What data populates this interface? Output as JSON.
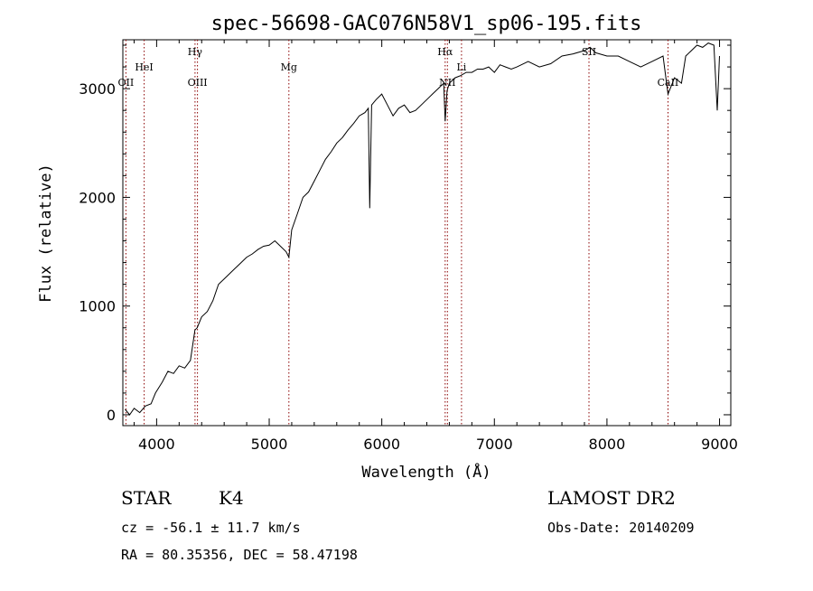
{
  "chart_data": {
    "type": "line",
    "title": "spec-56698-GAC076N58V1_sp06-195.fits",
    "xlabel": "Wavelength (Å)",
    "ylabel": "Flux (relative)",
    "xlim": [
      3700,
      9100
    ],
    "ylim": [
      -100,
      3450
    ],
    "x_ticks": [
      4000,
      5000,
      6000,
      7000,
      8000,
      9000
    ],
    "y_ticks": [
      0,
      1000,
      2000,
      3000
    ],
    "grid": false,
    "legend": "none",
    "series": [
      {
        "color": "#000000",
        "x": [
          3720,
          3760,
          3800,
          3850,
          3900,
          3950,
          3990,
          4050,
          4100,
          4150,
          4200,
          4250,
          4300,
          4340,
          4360,
          4400,
          4450,
          4500,
          4550,
          4600,
          4650,
          4700,
          4750,
          4800,
          4850,
          4900,
          4950,
          5000,
          5050,
          5100,
          5150,
          5175,
          5200,
          5250,
          5300,
          5350,
          5400,
          5450,
          5500,
          5550,
          5600,
          5650,
          5700,
          5750,
          5800,
          5850,
          5880,
          5893,
          5910,
          5950,
          6000,
          6050,
          6100,
          6150,
          6200,
          6250,
          6300,
          6350,
          6400,
          6450,
          6500,
          6550,
          6563,
          6580,
          6600,
          6650,
          6700,
          6750,
          6800,
          6850,
          6900,
          6950,
          7000,
          7050,
          7100,
          7150,
          7200,
          7300,
          7400,
          7500,
          7600,
          7700,
          7800,
          7850,
          7900,
          8000,
          8100,
          8200,
          8300,
          8400,
          8498,
          8542,
          8600,
          8662,
          8700,
          8750,
          8800,
          8850,
          8900,
          8950,
          8980,
          9000
        ],
        "values": [
          50,
          0,
          60,
          20,
          80,
          100,
          200,
          300,
          400,
          380,
          450,
          430,
          500,
          780,
          800,
          900,
          950,
          1050,
          1200,
          1250,
          1300,
          1350,
          1400,
          1450,
          1480,
          1520,
          1550,
          1560,
          1600,
          1550,
          1500,
          1450,
          1700,
          1850,
          2000,
          2050,
          2150,
          2250,
          2350,
          2420,
          2500,
          2550,
          2620,
          2680,
          2750,
          2780,
          2820,
          1900,
          2850,
          2900,
          2950,
          2850,
          2750,
          2820,
          2850,
          2780,
          2800,
          2850,
          2900,
          2950,
          3000,
          3050,
          2700,
          2980,
          3050,
          3100,
          3120,
          3150,
          3150,
          3180,
          3180,
          3200,
          3150,
          3220,
          3200,
          3180,
          3200,
          3250,
          3200,
          3230,
          3300,
          3320,
          3350,
          3380,
          3330,
          3300,
          3300,
          3250,
          3200,
          3250,
          3300,
          2950,
          3100,
          3050,
          3300,
          3350,
          3400,
          3380,
          3420,
          3400,
          2800,
          3300
        ]
      }
    ],
    "spectral_lines": [
      {
        "label": "OII",
        "x": 3727,
        "row": "low"
      },
      {
        "label": "HeI",
        "x": 3889,
        "row": "mid"
      },
      {
        "label": "Hγ",
        "x": 4341,
        "row": "high"
      },
      {
        "label": "OIII",
        "x": 4363,
        "row": "low"
      },
      {
        "label": "Mg",
        "x": 5175,
        "row": "mid"
      },
      {
        "label": "Hα",
        "x": 6563,
        "row": "high"
      },
      {
        "label": "NII",
        "x": 6583,
        "row": "low"
      },
      {
        "label": "Li",
        "x": 6708,
        "row": "mid"
      },
      {
        "label": "SII",
        "x": 7840,
        "row": "high"
      },
      {
        "label": "CaII",
        "x": 8542,
        "row": "low"
      }
    ]
  },
  "info": {
    "class_label": "STAR",
    "subclass": "K4",
    "survey": "LAMOST DR2",
    "redshift": "cz = -56.1 ± 11.7 km/s",
    "obs_date": "Obs-Date: 20140209",
    "coords": "RA =  80.35356, DEC =  58.47198"
  }
}
